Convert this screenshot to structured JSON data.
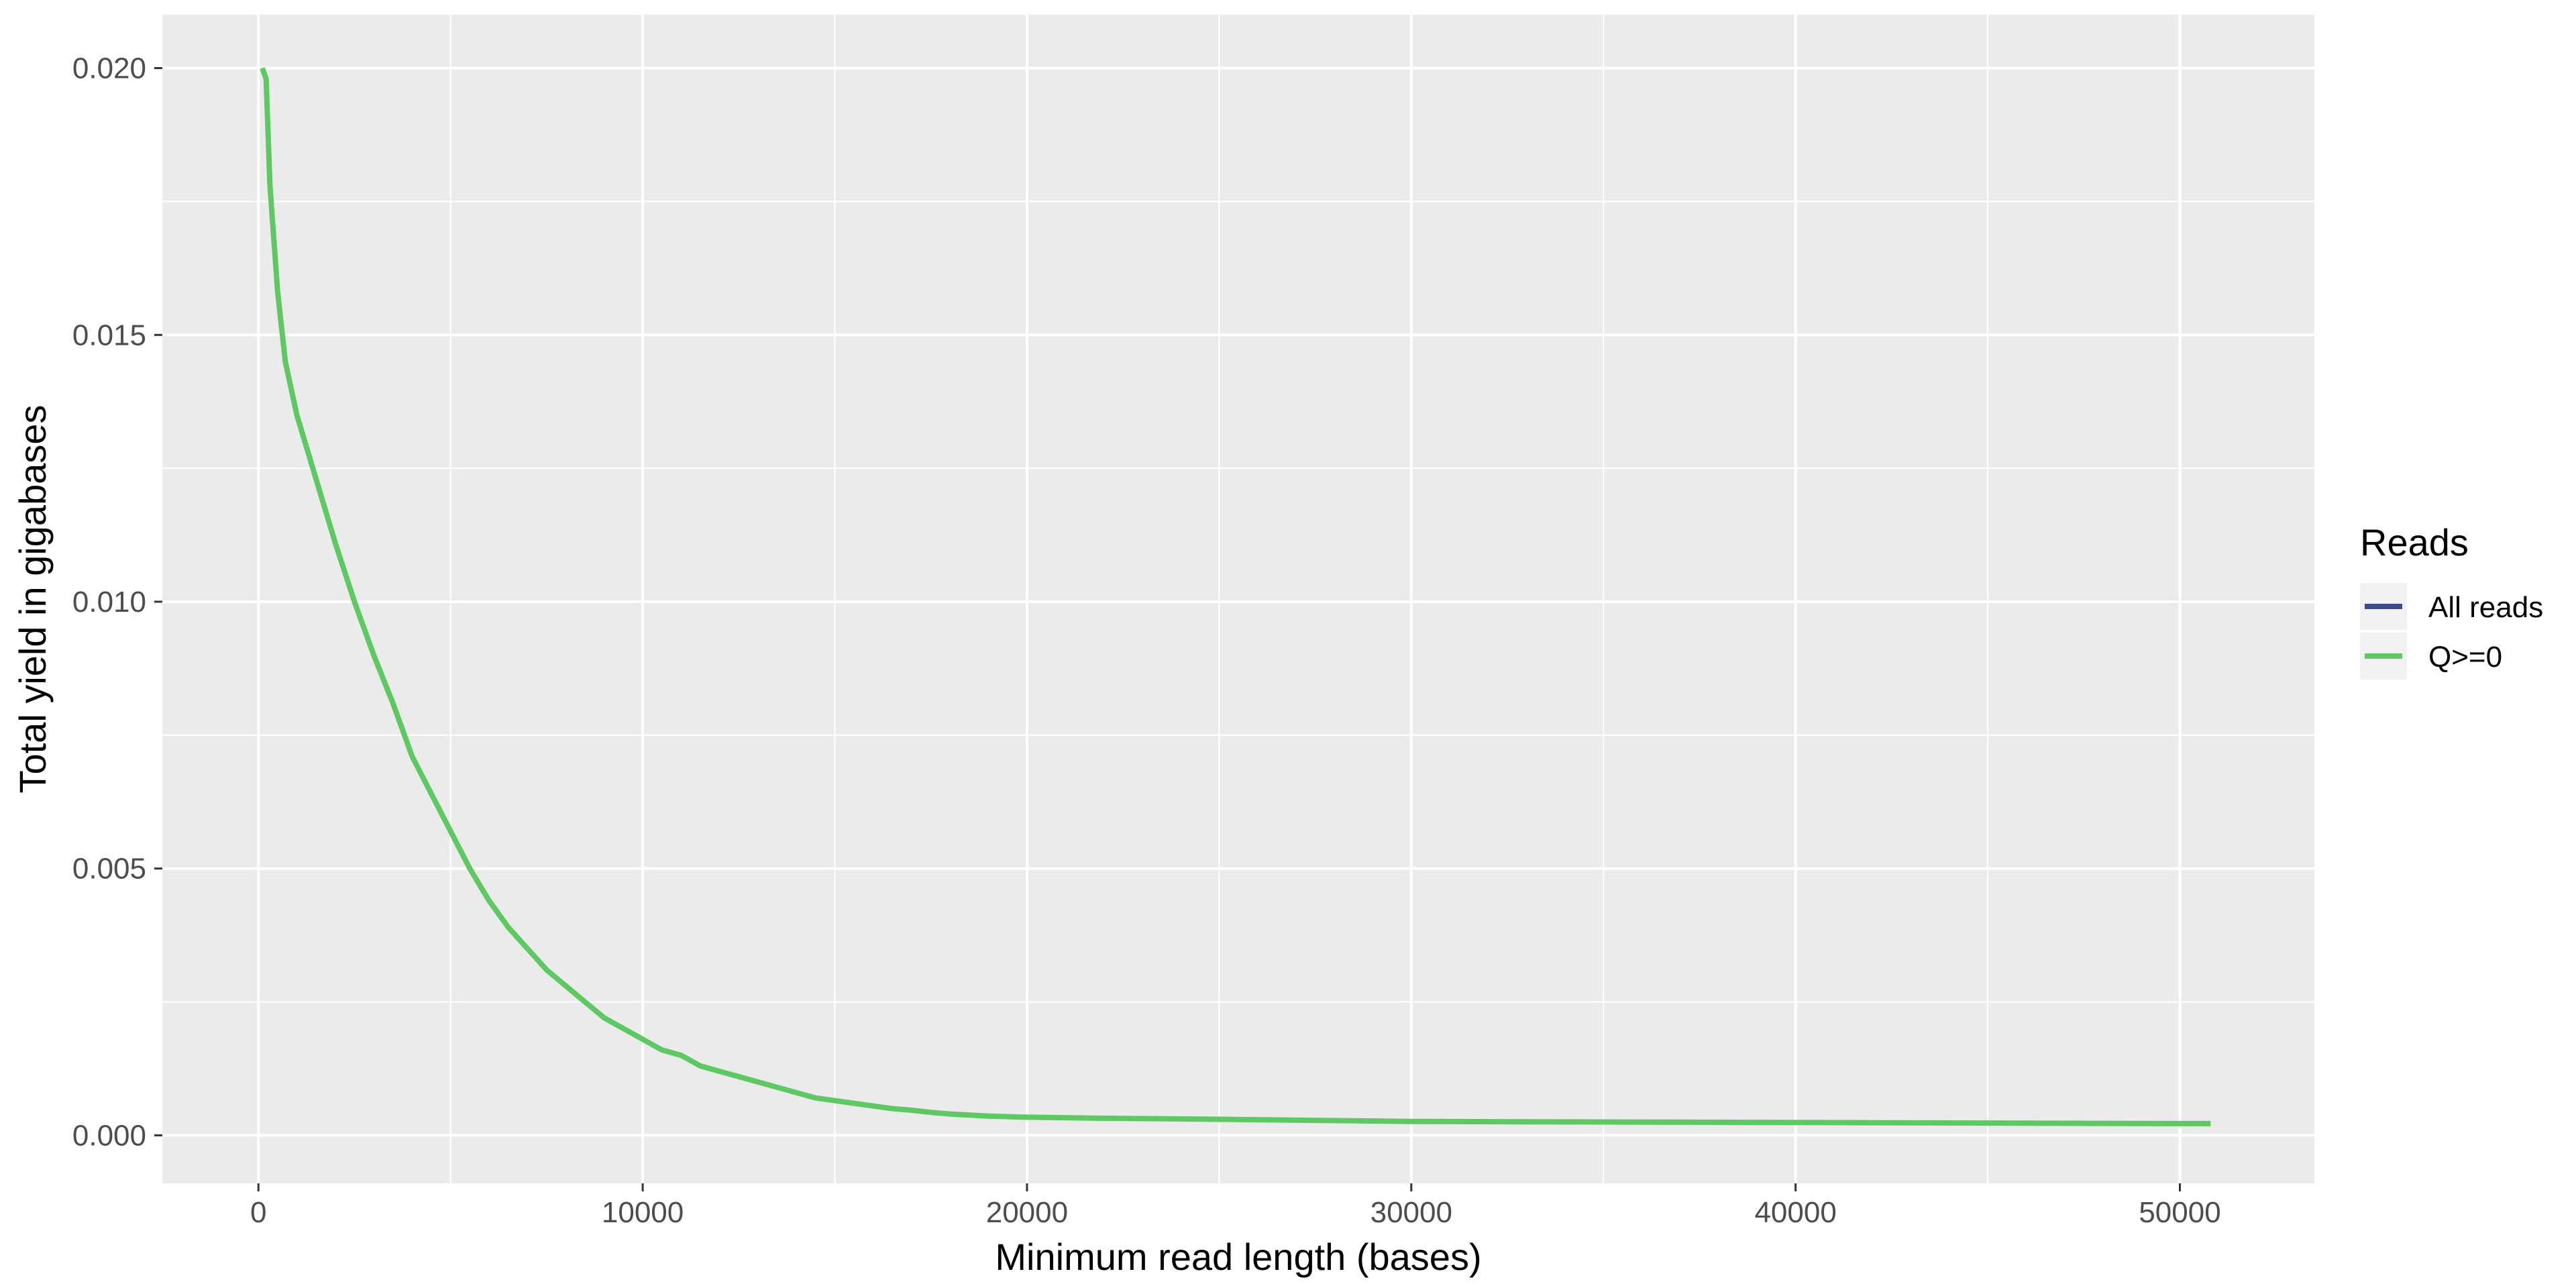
{
  "chart_data": {
    "type": "line",
    "xlabel": "Minimum read length (bases)",
    "ylabel": "Total yield in gigabases",
    "xlim": [
      -2500,
      53500
    ],
    "ylim": [
      -0.0009,
      0.021
    ],
    "x_ticks": [
      0,
      10000,
      20000,
      30000,
      40000,
      50000
    ],
    "x_tick_labels": [
      "0",
      "10000",
      "20000",
      "30000",
      "40000",
      "50000"
    ],
    "y_ticks": [
      0.0,
      0.005,
      0.01,
      0.015,
      0.02
    ],
    "y_tick_labels": [
      "0.000",
      "0.005",
      "0.010",
      "0.015",
      "0.020"
    ],
    "grid": true,
    "legend": {
      "title": "Reads",
      "placement": "right",
      "entries": [
        {
          "label": "All reads",
          "color": "#3e4a89"
        },
        {
          "label": "Q>=0",
          "color": "#5ec962"
        }
      ]
    },
    "series": [
      {
        "name": "Q>=0",
        "color": "#5ec962",
        "x": [
          100,
          200,
          300,
          500,
          700,
          1000,
          1500,
          2000,
          2500,
          3000,
          3500,
          4000,
          4500,
          5000,
          5500,
          6000,
          6500,
          7000,
          7500,
          8000,
          8500,
          9000,
          9500,
          10000,
          10500,
          11000,
          11500,
          12000,
          12500,
          13000,
          13500,
          14000,
          14500,
          15000,
          15500,
          16000,
          16500,
          17000,
          17500,
          18000,
          19000,
          20000,
          22000,
          25000,
          27500,
          30000,
          35000,
          40000,
          45000,
          50000,
          50800
        ],
        "y": [
          0.02,
          0.0198,
          0.0178,
          0.0158,
          0.0145,
          0.0135,
          0.0123,
          0.0111,
          0.01,
          0.009,
          0.0081,
          0.0071,
          0.0064,
          0.0057,
          0.005,
          0.0044,
          0.0039,
          0.0035,
          0.0031,
          0.0028,
          0.0025,
          0.0022,
          0.002,
          0.0018,
          0.0016,
          0.0015,
          0.0013,
          0.0012,
          0.0011,
          0.001,
          0.0009,
          0.0008,
          0.0007,
          0.00065,
          0.0006,
          0.00055,
          0.0005,
          0.00047,
          0.00043,
          0.0004,
          0.00036,
          0.00034,
          0.00032,
          0.0003,
          0.00028,
          0.00026,
          0.00025,
          0.00024,
          0.00023,
          0.00022,
          0.00022
        ]
      }
    ]
  }
}
